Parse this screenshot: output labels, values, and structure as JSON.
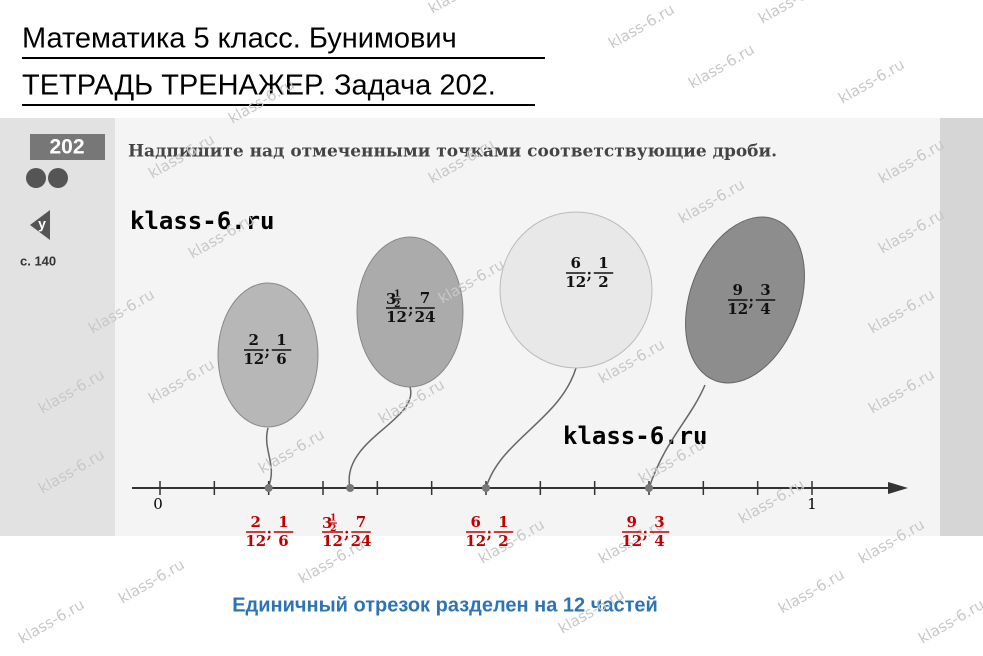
{
  "header": {
    "line1": "Математика 5 класс. Бунимович",
    "line2": "ТЕТРАДЬ ТРЕНАЖЕР. Задача 202."
  },
  "task": {
    "number": "202",
    "icon": "у",
    "page": "с. 140",
    "instruction": "Надпишите над отмеченными точками соответствующие дроби."
  },
  "watermark": "klass-6.ru",
  "axis": {
    "zero": "0",
    "one": "1"
  },
  "separator": ";",
  "points": [
    {
      "fractions": [
        {
          "num": "2",
          "den": "12"
        },
        {
          "num": "1",
          "den": "6"
        }
      ]
    },
    {
      "fractions": [
        {
          "whole": "3",
          "num": "1",
          "den": "2",
          "outer_den": "12"
        },
        {
          "num": "7",
          "den": "24"
        }
      ]
    },
    {
      "fractions": [
        {
          "num": "6",
          "den": "12"
        },
        {
          "num": "1",
          "den": "2"
        }
      ]
    },
    {
      "fractions": [
        {
          "num": "9",
          "den": "12"
        },
        {
          "num": "3",
          "den": "4"
        }
      ]
    }
  ],
  "note": "Единичный отрезок разделен на 12 частей"
}
